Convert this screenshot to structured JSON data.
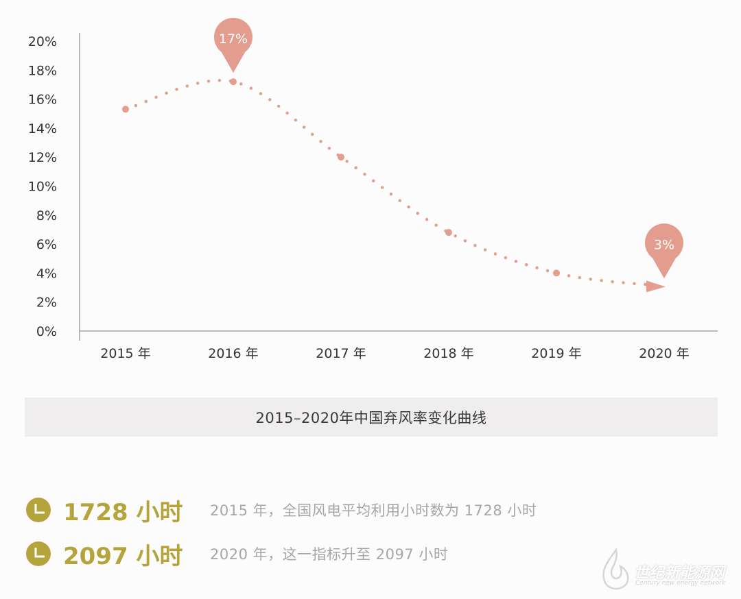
{
  "chart_data": {
    "type": "line",
    "title": "",
    "xlabel": "",
    "ylabel": "",
    "categories": [
      "2015 年",
      "2016 年",
      "2017 年",
      "2018 年",
      "2019 年",
      "2020 年"
    ],
    "series": [
      {
        "values": [
          15.3,
          17.2,
          12.0,
          6.8,
          4.0,
          3.1
        ],
        "color": "#e39e8e"
      }
    ],
    "yticks": [
      "0%",
      "2%",
      "4%",
      "6%",
      "8%",
      "10%",
      "12%",
      "14%",
      "16%",
      "18%",
      "20%"
    ],
    "ylim": [
      0,
      20
    ],
    "grid": false,
    "line_style": "dotted",
    "annotations": [
      {
        "category": "2016 年",
        "text": "17%"
      },
      {
        "category": "2020 年",
        "text": "3%"
      }
    ],
    "caption": "2015–2020年中国弃风率变化曲线"
  },
  "stats": [
    {
      "value": "1728 小时",
      "description": "2015 年，全国风电平均利用小时数为 1728 小时",
      "icon": "pie-chart-icon"
    },
    {
      "value": "2097 小时",
      "description": "2020 年，这一指标升至 2097 小时",
      "icon": "pie-chart-icon"
    }
  ],
  "colors": {
    "line": "#e39e8e",
    "marker_pin": "#e29d8e",
    "accent_gold": "#b5a33c",
    "caption_bg": "#efedee"
  },
  "watermark": {
    "title": "世纪新能源网",
    "subtitle": "Century new energy network"
  }
}
